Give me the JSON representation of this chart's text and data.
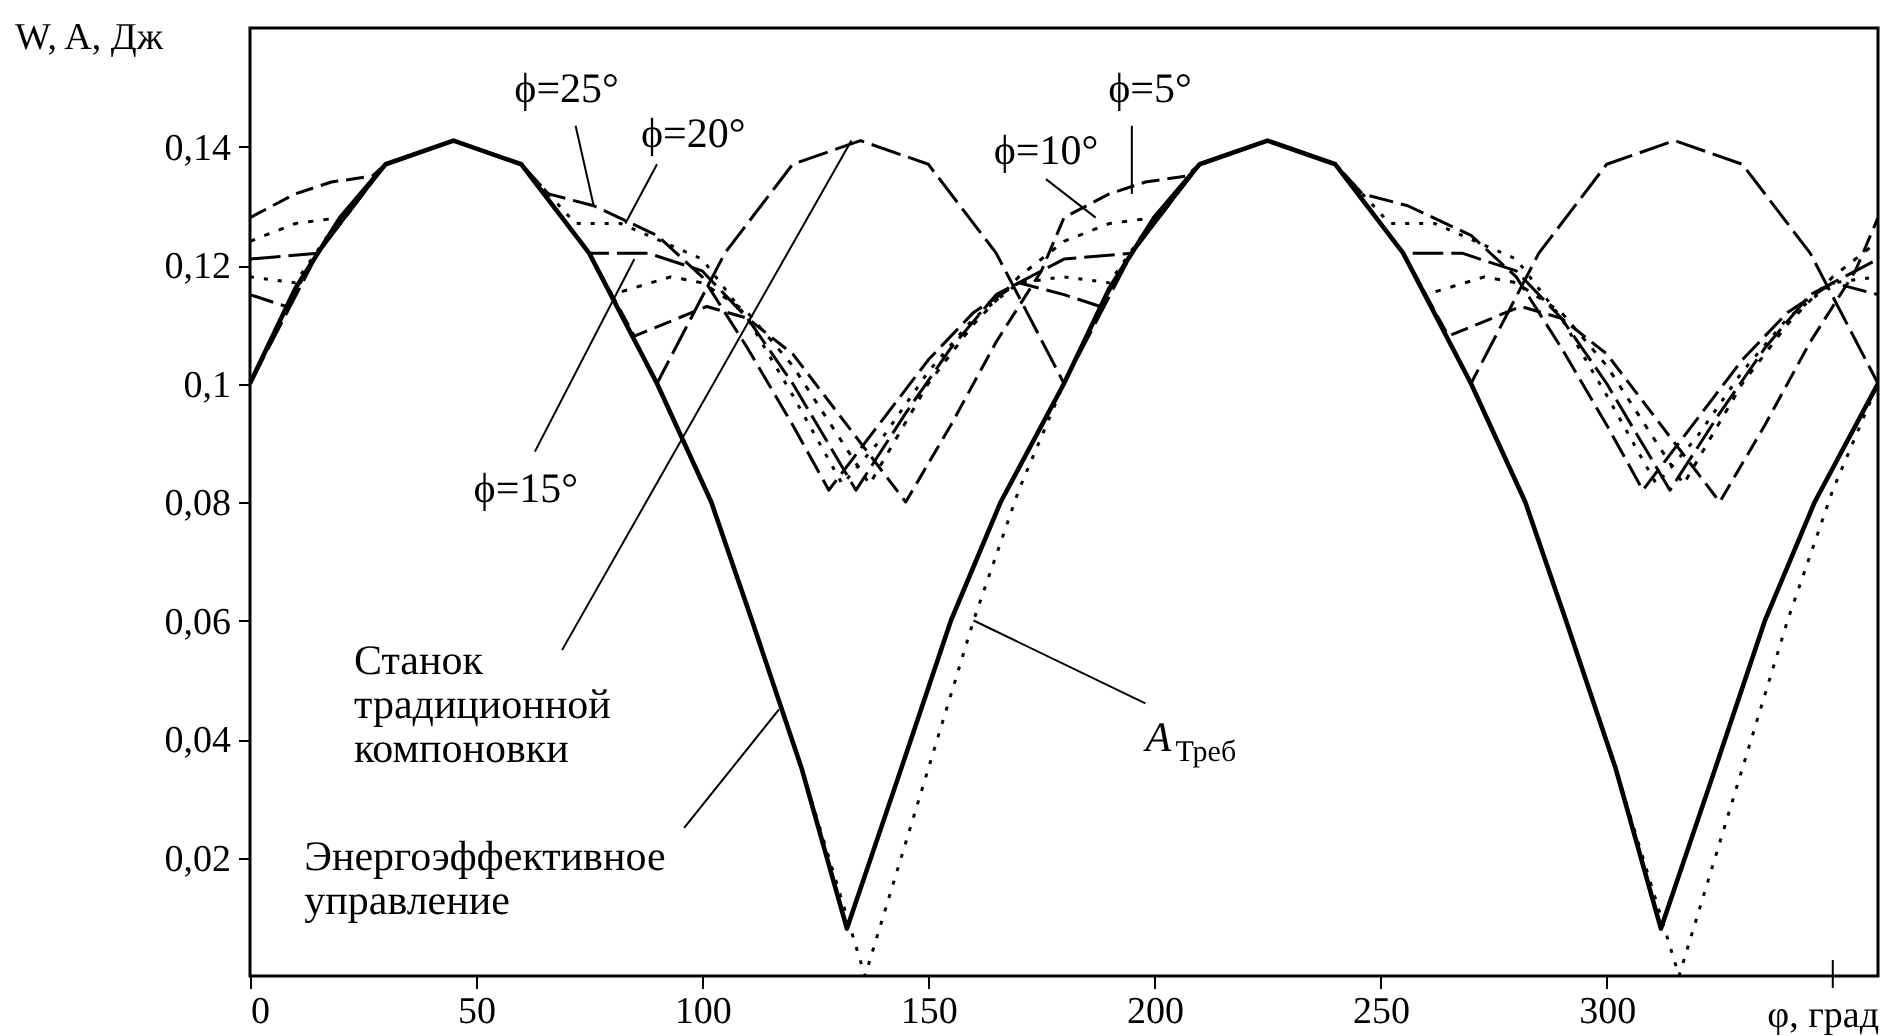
{
  "chart_data": {
    "type": "line",
    "xlabel": "φ, град",
    "ylabel": "W, A, Дж",
    "xlim": [
      0,
      360
    ],
    "ylim": [
      0,
      0.16
    ],
    "xticks": [
      0,
      50,
      100,
      150,
      200,
      250,
      300,
      {
        "value": 350,
        "label": null
      }
    ],
    "yticks": [
      {
        "value": 0.02,
        "label": "0,02"
      },
      {
        "value": 0.04,
        "label": "0,04"
      },
      {
        "value": 0.06,
        "label": "0,06"
      },
      {
        "value": 0.08,
        "label": "0,08"
      },
      {
        "value": 0.1,
        "label": "0,1"
      },
      {
        "value": 0.12,
        "label": "0,12"
      },
      {
        "value": 0.14,
        "label": "0,14"
      }
    ],
    "grid": false,
    "marker": "none",
    "series": [
      {
        "color": "#000000",
        "line_style": "dashed",
        "x": [
          0,
          10,
          18,
          27,
          30,
          45,
          60,
          75,
          85,
          101,
          110,
          120,
          130,
          145,
          155,
          165,
          175,
          180,
          190,
          198,
          207,
          210,
          225,
          240,
          255,
          265,
          281,
          290,
          300,
          310,
          325,
          335,
          345,
          355,
          360
        ],
        "values": [
          0.128,
          0.132,
          0.134,
          0.135,
          0.137,
          0.141,
          0.137,
          0.122,
          0.108,
          0.113,
          0.111,
          0.105,
          0.095,
          0.08,
          0.093,
          0.107,
          0.119,
          0.128,
          0.132,
          0.134,
          0.135,
          0.137,
          0.141,
          0.137,
          0.122,
          0.108,
          0.113,
          0.111,
          0.105,
          0.095,
          0.08,
          0.093,
          0.107,
          0.119,
          0.128
        ]
      },
      {
        "color": "#000000",
        "line_style": "dotted",
        "x": [
          0,
          10,
          20,
          30,
          45,
          60,
          75,
          80,
          93,
          100,
          110,
          120,
          137,
          150,
          160,
          170,
          180,
          190,
          200,
          210,
          225,
          240,
          255,
          260,
          273,
          280,
          290,
          300,
          317,
          330,
          340,
          350,
          360
        ],
        "values": [
          0.124,
          0.127,
          0.128,
          0.137,
          0.141,
          0.137,
          0.122,
          0.115,
          0.118,
          0.117,
          0.112,
          0.103,
          0.083,
          0.1,
          0.11,
          0.118,
          0.124,
          0.127,
          0.128,
          0.137,
          0.141,
          0.137,
          0.122,
          0.115,
          0.118,
          0.117,
          0.112,
          0.103,
          0.083,
          0.1,
          0.11,
          0.118,
          0.124
        ]
      },
      {
        "color": "#000000",
        "line_style": "dashed",
        "x": [
          0,
          15,
          30,
          45,
          60,
          75,
          88,
          100,
          110,
          120,
          134,
          145,
          155,
          165,
          180,
          195,
          210,
          225,
          240,
          255,
          268,
          280,
          290,
          300,
          314,
          325,
          335,
          345,
          360
        ],
        "values": [
          0.121,
          0.122,
          0.137,
          0.141,
          0.137,
          0.122,
          0.122,
          0.119,
          0.111,
          0.1,
          0.082,
          0.095,
          0.106,
          0.115,
          0.121,
          0.122,
          0.137,
          0.141,
          0.137,
          0.122,
          0.122,
          0.119,
          0.111,
          0.1,
          0.082,
          0.095,
          0.106,
          0.115,
          0.121
        ]
      },
      {
        "color": "#000000",
        "line_style": "dotted",
        "x": [
          0,
          10,
          20,
          30,
          45,
          60,
          72,
          82,
          100,
          110,
          120,
          131,
          140,
          150,
          160,
          170,
          180,
          190,
          200,
          210,
          225,
          240,
          252,
          262,
          280,
          290,
          300,
          311,
          320,
          330,
          340,
          350,
          360
        ],
        "values": [
          0.118,
          0.117,
          0.128,
          0.137,
          0.141,
          0.137,
          0.127,
          0.127,
          0.121,
          0.111,
          0.098,
          0.083,
          0.091,
          0.102,
          0.111,
          0.117,
          0.118,
          0.117,
          0.128,
          0.137,
          0.141,
          0.137,
          0.127,
          0.127,
          0.121,
          0.111,
          0.098,
          0.083,
          0.091,
          0.102,
          0.111,
          0.117,
          0.118
        ]
      },
      {
        "color": "#000000",
        "line_style": "dashed",
        "x": [
          0,
          8,
          15,
          30,
          45,
          60,
          66,
          76,
          90,
          100,
          110,
          120,
          128,
          140,
          150,
          160,
          170,
          180,
          188,
          195,
          210,
          225,
          240,
          246,
          256,
          270,
          280,
          290,
          300,
          308,
          320,
          330,
          340,
          350,
          360
        ],
        "values": [
          0.115,
          0.113,
          0.122,
          0.137,
          0.141,
          0.137,
          0.132,
          0.13,
          0.125,
          0.118,
          0.106,
          0.093,
          0.082,
          0.094,
          0.104,
          0.112,
          0.117,
          0.115,
          0.113,
          0.122,
          0.137,
          0.141,
          0.137,
          0.132,
          0.13,
          0.125,
          0.118,
          0.106,
          0.093,
          0.082,
          0.094,
          0.104,
          0.112,
          0.117,
          0.115
        ]
      },
      {
        "color": "#000000",
        "line_style": "dashed",
        "x": [
          0,
          15,
          30,
          45,
          60,
          75,
          90,
          105,
          120,
          135,
          150,
          165,
          180,
          195,
          210,
          225,
          240,
          255,
          270,
          285,
          300,
          315,
          330,
          345,
          360
        ],
        "values": [
          0.1,
          0.122,
          0.137,
          0.141,
          0.137,
          0.122,
          0.1,
          0.122,
          0.137,
          0.141,
          0.137,
          0.122,
          0.1,
          0.122,
          0.137,
          0.141,
          0.137,
          0.122,
          0.1,
          0.122,
          0.137,
          0.141,
          0.137,
          0.122,
          0.1
        ]
      },
      {
        "color": "#000000",
        "line_style": "dotted",
        "x": [
          0,
          10,
          20,
          30,
          45,
          60,
          75,
          90,
          102,
          111,
          122,
          130,
          134,
          136,
          148,
          160,
          170,
          180,
          190,
          200,
          210,
          225,
          240,
          255,
          270,
          282,
          291,
          302,
          310,
          314,
          316,
          328,
          340,
          350,
          360
        ],
        "values": [
          0.1,
          0.116,
          0.128,
          0.137,
          0.141,
          0.137,
          0.122,
          0.1,
          0.08,
          0.06,
          0.035,
          0.015,
          0.005,
          0,
          0.03,
          0.06,
          0.082,
          0.1,
          0.116,
          0.128,
          0.137,
          0.141,
          0.137,
          0.122,
          0.1,
          0.08,
          0.06,
          0.035,
          0.015,
          0.005,
          0,
          0.03,
          0.06,
          0.082,
          0.1
        ]
      },
      {
        "color": "#000000",
        "line_style": "solid",
        "x": [
          0,
          10,
          20,
          30,
          45,
          60,
          75,
          90,
          102,
          111,
          122,
          132,
          144,
          155,
          166,
          180,
          190,
          200,
          210,
          225,
          240,
          255,
          270,
          282,
          291,
          302,
          312,
          324,
          335,
          346,
          360
        ],
        "values": [
          0.1,
          0.116,
          0.128,
          0.137,
          0.141,
          0.137,
          0.122,
          0.1,
          0.08,
          0.06,
          0.035,
          0.008,
          0.035,
          0.06,
          0.08,
          0.1,
          0.116,
          0.128,
          0.137,
          0.141,
          0.137,
          0.122,
          0.1,
          0.08,
          0.06,
          0.035,
          0.008,
          0.035,
          0.06,
          0.08,
          0.1
        ]
      }
    ],
    "annotations": [
      {
        "text": "ϕ=25°",
        "x": 76,
        "y": 0.13
      },
      {
        "text": "ϕ=20°",
        "x": 83,
        "y": 0.127
      },
      {
        "text": "ϕ=15°",
        "x": 85,
        "y": 0.121
      },
      {
        "text": "ϕ=10°",
        "x": 187,
        "y": 0.128
      },
      {
        "text": "ϕ=5°",
        "x": 195,
        "y": 0.132
      },
      {
        "text": "Станок\nтрадиционной\nкомпоновки",
        "x": 133,
        "y": 0.141
      },
      {
        "text": "Энергоэффективное\nуправление",
        "x": 117,
        "y": 0.045
      },
      {
        "text": "A$_{Треб}$",
        "x": 160,
        "y": 0.06
      }
    ]
  }
}
